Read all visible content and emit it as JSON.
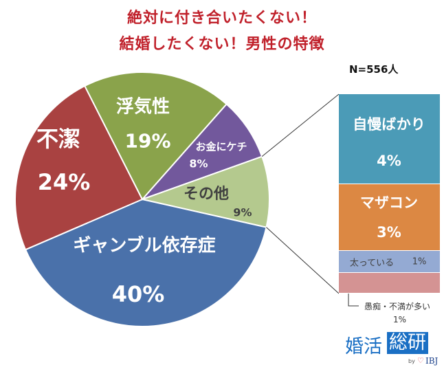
{
  "chart_data": {
    "type": "pie",
    "title": [
      "絶対に付き合いたくない！",
      "結婚したくない！男性の特徴"
    ],
    "sample": "N=556人",
    "slices": [
      {
        "name": "お金にケチ",
        "value": 8,
        "label": "8%",
        "color": "#72589c"
      },
      {
        "name": "その他",
        "value": 9,
        "label": "9%",
        "color": "#b4c98e"
      },
      {
        "name": "ギャンブル依存症",
        "value": 40,
        "label": "40%",
        "color": "#4a71aa"
      },
      {
        "name": "不潔",
        "value": 24,
        "label": "24%",
        "color": "#a94241"
      },
      {
        "name": "浮気性",
        "value": 19,
        "label": "19%",
        "color": "#8aa34b"
      }
    ],
    "start_angle_deg": 41.5,
    "breakdown_of": "その他",
    "bar": [
      {
        "name": "自慢ばかり",
        "value": 4,
        "label": "4%",
        "color": "#4b9bb7"
      },
      {
        "name": "マザコン",
        "value": 3,
        "label": "3%",
        "color": "#dc8843"
      },
      {
        "name": "太っている",
        "value": 1,
        "label": "1%",
        "color": "#94aad3"
      },
      {
        "name": "愚痴・不満が多い",
        "value": 1,
        "label": "1%",
        "color": "#d49393"
      }
    ]
  },
  "logo": {
    "part1": "婚活",
    "part2": "総研",
    "by": "by",
    "brand": "IBJ"
  }
}
